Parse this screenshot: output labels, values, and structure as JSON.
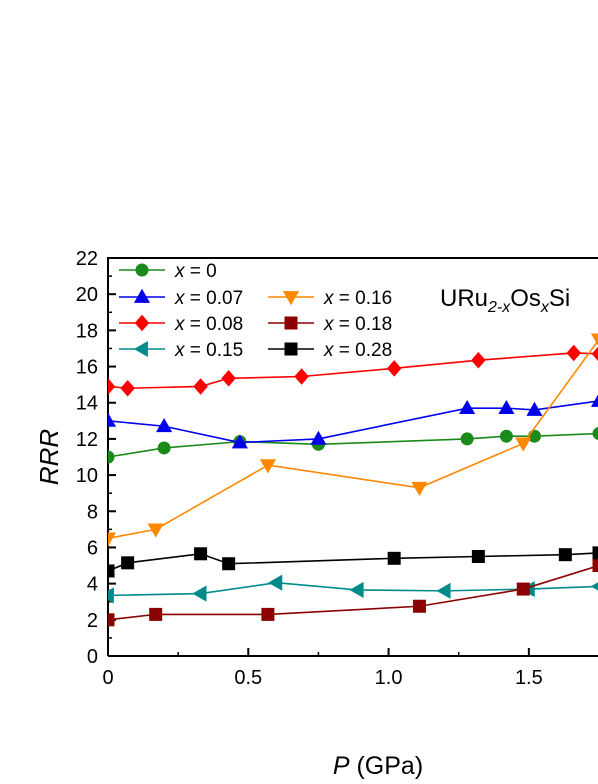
{
  "chart_data": {
    "type": "line",
    "title": "",
    "annotation": {
      "prefix": "URu",
      "sub1": "2-x",
      "mid": "Os",
      "sub2": "x",
      "suffix": "Si"
    },
    "xlabel": {
      "italic": "P",
      "rest": " (GPa)"
    },
    "ylabel": "RRR",
    "xlim": [
      0,
      1.75
    ],
    "ylim": [
      0,
      22
    ],
    "xticks": [
      "0",
      "0.5",
      "1.0",
      "1.5"
    ],
    "xtick_values": [
      0,
      0.5,
      1.0,
      1.5
    ],
    "yticks": [
      "0",
      "2",
      "4",
      "6",
      "8",
      "10",
      "12",
      "14",
      "16",
      "18",
      "20",
      "22"
    ],
    "ytick_values": [
      0,
      2,
      4,
      6,
      8,
      10,
      12,
      14,
      16,
      18,
      20,
      22
    ],
    "grid": false,
    "legend_position": "top-left",
    "series": [
      {
        "name": "x = 0",
        "name_italic": "x",
        "name_rest": " = 0",
        "color": "#1a8a1a",
        "marker": "circle",
        "x": [
          0,
          0.2,
          0.47,
          0.75,
          1.28,
          1.42,
          1.52,
          1.75
        ],
        "y": [
          11.0,
          11.5,
          11.85,
          11.7,
          12.0,
          12.15,
          12.15,
          12.3
        ]
      },
      {
        "name": "x = 0.07",
        "name_italic": "x",
        "name_rest": " = 0.07",
        "color": "#0000ee",
        "marker": "triangle-up",
        "x": [
          0,
          0.2,
          0.47,
          0.75,
          1.28,
          1.42,
          1.52,
          1.75
        ],
        "y": [
          13.0,
          12.7,
          11.8,
          12.0,
          13.7,
          13.7,
          13.6,
          14.1
        ]
      },
      {
        "name": "x = 0.08",
        "name_italic": "x",
        "name_rest": " = 0.08",
        "color": "#ff0000",
        "marker": "diamond",
        "x": [
          0,
          0.07,
          0.33,
          0.43,
          0.69,
          1.02,
          1.32,
          1.66,
          1.75
        ],
        "y": [
          14.9,
          14.8,
          14.9,
          15.35,
          15.45,
          15.9,
          16.35,
          16.75,
          16.7
        ]
      },
      {
        "name": "x = 0.15",
        "name_italic": "x",
        "name_rest": " = 0.15",
        "color": "#008b8b",
        "marker": "triangle-left",
        "x": [
          0,
          0.33,
          0.6,
          0.89,
          1.2,
          1.5,
          1.75
        ],
        "y": [
          3.35,
          3.45,
          4.05,
          3.65,
          3.6,
          3.7,
          3.85
        ]
      },
      {
        "name": "x = 0.16",
        "name_italic": "x",
        "name_rest": " = 0.16",
        "color": "#ff8800",
        "marker": "triangle-down",
        "x": [
          0,
          0.17,
          0.57,
          1.11,
          1.48,
          1.75
        ],
        "y": [
          6.5,
          7.0,
          10.55,
          9.3,
          11.75,
          17.5
        ]
      },
      {
        "name": "x = 0.18",
        "name_italic": "x",
        "name_rest": " = 0.18",
        "color": "#8b0000",
        "marker": "square",
        "x": [
          0,
          0.17,
          0.57,
          1.11,
          1.48,
          1.75
        ],
        "y": [
          2.0,
          2.3,
          2.3,
          2.75,
          3.7,
          5.0
        ]
      },
      {
        "name": "x = 0.28",
        "name_italic": "x",
        "name_rest": " = 0.28",
        "color": "#000000",
        "marker": "square",
        "x": [
          0,
          0.07,
          0.33,
          0.43,
          1.02,
          1.32,
          1.63,
          1.75
        ],
        "y": [
          4.7,
          5.15,
          5.65,
          5.1,
          5.4,
          5.5,
          5.6,
          5.7
        ]
      }
    ],
    "legend_layout": [
      {
        "series": 0,
        "col": 0,
        "row": 0
      },
      {
        "series": 1,
        "col": 0,
        "row": 1
      },
      {
        "series": 2,
        "col": 0,
        "row": 2
      },
      {
        "series": 3,
        "col": 0,
        "row": 3
      },
      {
        "series": 4,
        "col": 1,
        "row": 1
      },
      {
        "series": 5,
        "col": 1,
        "row": 2
      },
      {
        "series": 6,
        "col": 1,
        "row": 3
      }
    ]
  }
}
